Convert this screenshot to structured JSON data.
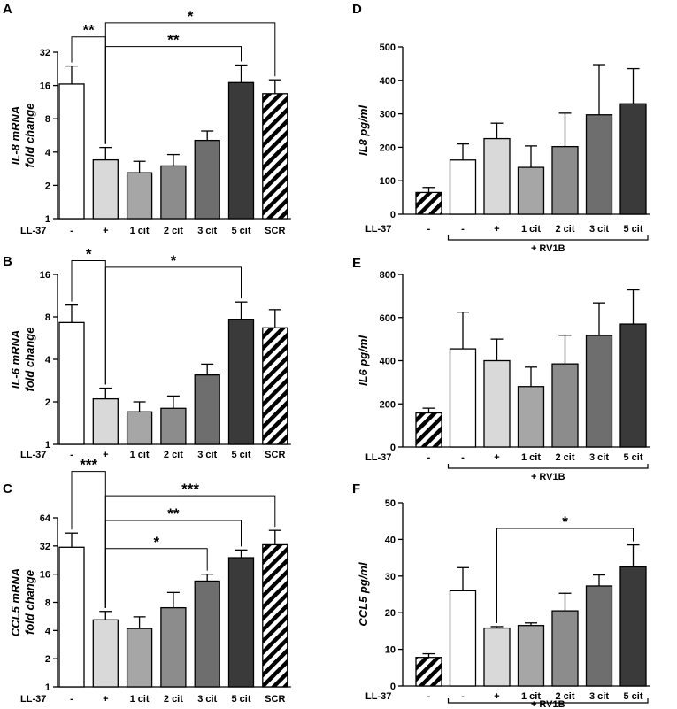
{
  "figure": {
    "row_label": "LL-37"
  },
  "chart_data": [
    {
      "id": "A",
      "panel_label": "A",
      "type": "bar",
      "scale": "log2",
      "ylabel_lines": [
        "IL-8 mRNA",
        "fold change"
      ],
      "ylim": [
        1,
        32
      ],
      "yticks": [
        1,
        2,
        4,
        8,
        16,
        32
      ],
      "categories": [
        "-",
        "+",
        "1 cit",
        "2 cit",
        "3 cit",
        "5 cit",
        "SCR"
      ],
      "values": [
        16.5,
        3.4,
        2.6,
        3.0,
        5.1,
        17,
        13.5
      ],
      "errors": [
        24,
        4.4,
        3.3,
        3.8,
        6.2,
        24.5,
        18
      ],
      "fills": [
        "#ffffff",
        "#d9d9d9",
        "#a6a6a6",
        "#8c8c8c",
        "#6e6e6e",
        "#3a3a3a",
        "hatch"
      ],
      "significance": [
        {
          "from": 0,
          "to": 1,
          "label": "**",
          "y": 44
        },
        {
          "from": 1,
          "to": 5,
          "label": "**",
          "y": 36
        },
        {
          "from": 1,
          "to": 6,
          "label": "*",
          "y": 59
        }
      ]
    },
    {
      "id": "B",
      "panel_label": "B",
      "type": "bar",
      "scale": "log2",
      "ylabel_lines": [
        "IL-6 mRNA",
        "fold change"
      ],
      "ylim": [
        1,
        16
      ],
      "yticks": [
        1,
        2,
        4,
        8,
        16
      ],
      "categories": [
        "-",
        "+",
        "1 cit",
        "2 cit",
        "3 cit",
        "5 cit",
        "SCR"
      ],
      "values": [
        7.3,
        2.1,
        1.7,
        1.8,
        3.1,
        7.7,
        6.7
      ],
      "errors": [
        9.7,
        2.5,
        2.0,
        2.2,
        3.7,
        10.2,
        9.0
      ],
      "fills": [
        "#ffffff",
        "#d9d9d9",
        "#a6a6a6",
        "#8c8c8c",
        "#6e6e6e",
        "#3a3a3a",
        "hatch"
      ],
      "significance": [
        {
          "from": 0,
          "to": 1,
          "label": "*",
          "y": 20
        },
        {
          "from": 1,
          "to": 5,
          "label": "*",
          "y": 18
        }
      ]
    },
    {
      "id": "C",
      "panel_label": "C",
      "type": "bar",
      "scale": "log2",
      "ylabel_lines": [
        "CCL5 mRNA",
        "fold change"
      ],
      "ylim": [
        1,
        64
      ],
      "yticks": [
        1,
        2,
        4,
        8,
        16,
        32,
        64
      ],
      "categories": [
        "-",
        "+",
        "1 cit",
        "2 cit",
        "3 cit",
        "5 cit",
        "SCR"
      ],
      "values": [
        31,
        5.2,
        4.2,
        7.0,
        13.5,
        24,
        33
      ],
      "errors": [
        44,
        6.4,
        5.6,
        10.2,
        16,
        29,
        47
      ],
      "fills": [
        "#ffffff",
        "#d9d9d9",
        "#a6a6a6",
        "#8c8c8c",
        "#6e6e6e",
        "#3a3a3a",
        "hatch"
      ],
      "significance": [
        {
          "from": 0,
          "to": 1,
          "label": "***",
          "y": 200
        },
        {
          "from": 1,
          "to": 4,
          "label": "*",
          "y": 30
        },
        {
          "from": 1,
          "to": 5,
          "label": "**",
          "y": 60
        },
        {
          "from": 1,
          "to": 6,
          "label": "***",
          "y": 110
        }
      ]
    },
    {
      "id": "D",
      "panel_label": "D",
      "type": "bar",
      "scale": "linear",
      "ylabel_lines": [
        "IL8 pg/ml"
      ],
      "ylim": [
        0,
        500
      ],
      "yticks": [
        0,
        100,
        200,
        300,
        400,
        500
      ],
      "categories": [
        "-",
        "-",
        "+",
        "1 cit",
        "2 cit",
        "3 cit",
        "5 cit"
      ],
      "values": [
        65,
        162,
        226,
        140,
        202,
        297,
        330
      ],
      "errors": [
        80,
        210,
        272,
        204,
        302,
        447,
        435
      ],
      "fills": [
        "hatch",
        "#ffffff",
        "#d9d9d9",
        "#a6a6a6",
        "#8c8c8c",
        "#6e6e6e",
        "#3a3a3a"
      ],
      "group_label": "+ RV1B",
      "group_from": 1,
      "group_to": 6,
      "significance": []
    },
    {
      "id": "E",
      "panel_label": "E",
      "type": "bar",
      "scale": "linear",
      "ylabel_lines": [
        "IL6 pg/ml"
      ],
      "ylim": [
        0,
        800
      ],
      "yticks": [
        0,
        200,
        400,
        600,
        800
      ],
      "categories": [
        "-",
        "-",
        "+",
        "1 cit",
        "2 cit",
        "3 cit",
        "5 cit"
      ],
      "values": [
        158,
        455,
        400,
        280,
        385,
        517,
        570
      ],
      "errors": [
        180,
        625,
        500,
        370,
        518,
        668,
        728
      ],
      "fills": [
        "hatch",
        "#ffffff",
        "#d9d9d9",
        "#a6a6a6",
        "#8c8c8c",
        "#6e6e6e",
        "#3a3a3a"
      ],
      "group_label": "+ RV1B",
      "group_from": 1,
      "group_to": 6,
      "significance": []
    },
    {
      "id": "F",
      "panel_label": "F",
      "type": "bar",
      "scale": "linear",
      "ylabel_lines": [
        "CCL5 pg/ml"
      ],
      "ylim": [
        0,
        50
      ],
      "yticks": [
        0,
        10,
        20,
        30,
        40,
        50
      ],
      "categories": [
        "-",
        "-",
        "+",
        "1 cit",
        "2 cit",
        "3 cit",
        "5 cit"
      ],
      "values": [
        7.8,
        26,
        15.8,
        16.5,
        20.5,
        27.3,
        32.5
      ],
      "errors": [
        8.8,
        32.3,
        16.2,
        17.2,
        25.3,
        30.3,
        38.5
      ],
      "fills": [
        "hatch",
        "#ffffff",
        "#d9d9d9",
        "#a6a6a6",
        "#8c8c8c",
        "#6e6e6e",
        "#3a3a3a"
      ],
      "group_label": "+ RV1B",
      "group_from": 1,
      "group_to": 6,
      "significance": [
        {
          "from": 2,
          "to": 6,
          "label": "*",
          "y": 43
        }
      ]
    }
  ]
}
